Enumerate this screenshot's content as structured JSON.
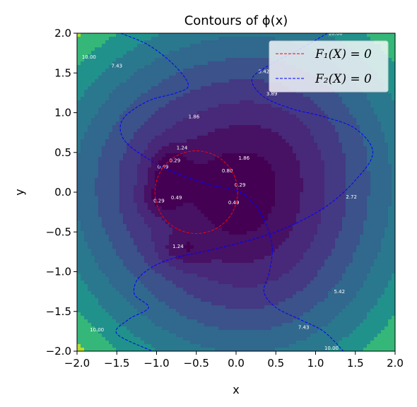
{
  "chart_data": {
    "type": "contour",
    "title": "Contours of ϕ(x)",
    "xlabel": "x",
    "ylabel": "y",
    "xlim": [
      -2.0,
      2.0
    ],
    "ylim": [
      -2.0,
      2.0
    ],
    "xticks": [
      "−2.0",
      "−1.5",
      "−1.0",
      "−0.5",
      "0.0",
      "0.5",
      "1.0",
      "1.5",
      "2.0"
    ],
    "yticks": [
      "−2.0",
      "−1.5",
      "−1.0",
      "−0.5",
      "0.0",
      "0.5",
      "1.0",
      "1.5",
      "2.0"
    ],
    "levels": [
      {
        "value": 10.0,
        "color": "#b5de2b"
      },
      {
        "value": 7.43,
        "color": "#35b779"
      },
      {
        "value": 5.42,
        "color": "#21918c"
      },
      {
        "value": 3.89,
        "color": "#2a788e"
      },
      {
        "value": 2.72,
        "color": "#31688e"
      },
      {
        "value": 1.86,
        "color": "#3b528b"
      },
      {
        "value": 1.24,
        "color": "#443983"
      },
      {
        "value": 0.8,
        "color": "#482878"
      },
      {
        "value": 0.49,
        "color": "#471164"
      },
      {
        "value": 0.29,
        "color": "#440154"
      }
    ],
    "contour_labels": [
      {
        "text": "10.00",
        "x": -1.85,
        "y": 1.68
      },
      {
        "text": "7.43",
        "x": -1.5,
        "y": 1.57
      },
      {
        "text": "5.42",
        "x": 0.35,
        "y": 1.5
      },
      {
        "text": "3.89",
        "x": 0.45,
        "y": 1.22
      },
      {
        "text": "1.86",
        "x": -0.53,
        "y": 0.93
      },
      {
        "text": "1.24",
        "x": -0.68,
        "y": 0.54
      },
      {
        "text": "1.86",
        "x": 0.1,
        "y": 0.41
      },
      {
        "text": "0.29",
        "x": -0.77,
        "y": 0.38
      },
      {
        "text": "0.49",
        "x": -0.92,
        "y": 0.3
      },
      {
        "text": "0.80",
        "x": -0.11,
        "y": 0.25
      },
      {
        "text": "0.29",
        "x": 0.05,
        "y": 0.07
      },
      {
        "text": "0.29",
        "x": -0.97,
        "y": -0.13
      },
      {
        "text": "0.49",
        "x": -0.75,
        "y": -0.09
      },
      {
        "text": "0.49",
        "x": -0.03,
        "y": -0.15
      },
      {
        "text": "2.72",
        "x": 1.45,
        "y": -0.08
      },
      {
        "text": "1.24",
        "x": -0.73,
        "y": -0.7
      },
      {
        "text": "5.42",
        "x": 1.3,
        "y": -1.27
      },
      {
        "text": "7.43",
        "x": 0.85,
        "y": -1.72
      },
      {
        "text": "10.00",
        "x": -1.75,
        "y": -1.75
      },
      {
        "text": "10.00",
        "x": 1.2,
        "y": -1.98
      },
      {
        "text": "10.00",
        "x": 1.25,
        "y": 1.98
      }
    ],
    "lines": [
      {
        "name": "F1(X) = 0",
        "legend_label": "F₁(X) = 0",
        "color": "#ff0000",
        "style": "dashed",
        "shape": "circle",
        "center": [
          -0.5,
          0.0
        ],
        "radius": 0.52
      },
      {
        "name": "F2(X) = 0",
        "legend_label": "F₂(X) = 0",
        "color": "#0000ff",
        "style": "dashed",
        "branches": [
          [
            [
              -1.45,
              2.0
            ],
            [
              -1.1,
              1.85
            ],
            [
              -0.78,
              1.6
            ],
            [
              -0.6,
              1.35
            ],
            [
              -0.75,
              1.25
            ],
            [
              -1.1,
              1.15
            ],
            [
              -1.4,
              0.95
            ],
            [
              -1.45,
              0.75
            ],
            [
              -1.3,
              0.55
            ],
            [
              -0.85,
              0.28
            ],
            [
              -0.35,
              0.1
            ],
            [
              0.05,
              0.0
            ],
            [
              0.3,
              -0.25
            ],
            [
              0.45,
              -0.65
            ],
            [
              0.42,
              -1.0
            ],
            [
              0.35,
              -1.25
            ],
            [
              0.5,
              -1.45
            ],
            [
              0.8,
              -1.6
            ],
            [
              1.1,
              -1.75
            ],
            [
              1.35,
              -2.0
            ]
          ],
          [
            [
              1.15,
              2.0
            ],
            [
              0.8,
              1.8
            ],
            [
              0.42,
              1.6
            ],
            [
              0.2,
              1.42
            ],
            [
              0.35,
              1.2
            ],
            [
              0.7,
              1.05
            ],
            [
              1.1,
              0.95
            ],
            [
              1.5,
              0.8
            ],
            [
              1.72,
              0.5
            ],
            [
              1.5,
              0.15
            ],
            [
              1.1,
              -0.2
            ],
            [
              0.5,
              -0.5
            ],
            [
              -0.2,
              -0.7
            ],
            [
              -0.85,
              -0.85
            ],
            [
              -1.2,
              -1.05
            ],
            [
              -1.28,
              -1.28
            ],
            [
              -1.1,
              -1.45
            ],
            [
              -1.35,
              -1.6
            ],
            [
              -1.5,
              -1.78
            ],
            [
              -1.05,
              -2.0
            ]
          ]
        ]
      }
    ],
    "legend": {
      "placement": "upper right"
    }
  }
}
